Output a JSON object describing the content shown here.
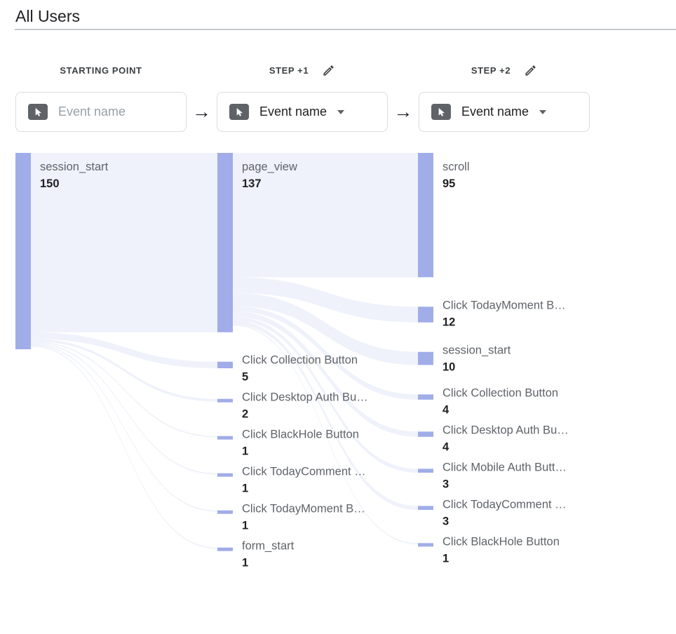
{
  "page": {
    "title": "All Users"
  },
  "icons": {
    "arrow_right": "→"
  },
  "colors": {
    "node": "#a0ade8",
    "flow": "#dde3f4",
    "divider": "#c6c9cd",
    "label": "#5f6368",
    "value": "#202124",
    "placeholder": "#9aa0a6"
  },
  "steps": [
    {
      "label": "STARTING POINT",
      "value": "Event name",
      "placeholder": true,
      "editable": false
    },
    {
      "label": "STEP +1",
      "value": "Event name",
      "placeholder": false,
      "editable": true
    },
    {
      "label": "STEP +2",
      "value": "Event name",
      "placeholder": false,
      "editable": true
    }
  ],
  "chart_data": {
    "type": "sankey",
    "title": "All Users",
    "note": "values are event counts per step"
  },
  "sankey": {
    "columns": [
      {
        "nodes": [
          {
            "label": "session_start",
            "value": 150
          }
        ]
      },
      {
        "nodes": [
          {
            "label": "page_view",
            "value": 137
          },
          {
            "label": "Click Collection Button",
            "value": 5
          },
          {
            "label": "Click Desktop Auth Bu…",
            "value": 2
          },
          {
            "label": "Click BlackHole Button",
            "value": 1
          },
          {
            "label": "Click TodayComment …",
            "value": 1
          },
          {
            "label": "Click TodayMoment B…",
            "value": 1
          },
          {
            "label": "form_start",
            "value": 1
          }
        ]
      },
      {
        "nodes": [
          {
            "label": "scroll",
            "value": 95
          },
          {
            "label": "Click TodayMoment B…",
            "value": 12
          },
          {
            "label": "session_start",
            "value": 10
          },
          {
            "label": "Click Collection Button",
            "value": 4
          },
          {
            "label": "Click Desktop Auth Bu…",
            "value": 4
          },
          {
            "label": "Click Mobile Auth Butt…",
            "value": 3
          },
          {
            "label": "Click TodayComment …",
            "value": 3
          },
          {
            "label": "Click BlackHole Button",
            "value": 1
          }
        ]
      }
    ]
  }
}
